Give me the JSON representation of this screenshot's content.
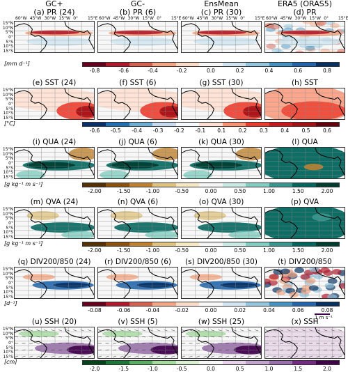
{
  "columns": [
    {
      "line1": "GC+",
      "line2": "(a) PR (24)"
    },
    {
      "line1": "GC-",
      "line2": "(b) PR (6)"
    },
    {
      "line1": "EnsMean",
      "line2": "(c) PR (30)"
    },
    {
      "line1": "ERA5 (ORAS5)",
      "line2": "(d) PR"
    }
  ],
  "x_ticks": [
    "60°W",
    "45°W",
    "30°W",
    "15°W",
    "0°",
    "15°E"
  ],
  "y_ticks": [
    "15°N",
    "10°N",
    "5°N",
    "0°",
    "5°S",
    "10°S",
    "15°S"
  ],
  "rows": [
    {
      "titles": [
        "",
        "",
        "",
        ""
      ],
      "unit": "[mm d⁻¹]",
      "colorbar": [
        "-0.8",
        "-0.6",
        "-0.4",
        "-0.2",
        "0.0",
        "0.2",
        "0.4",
        "0.6",
        "0.8"
      ],
      "palette": "rb"
    },
    {
      "titles": [
        "(e) SST (24)",
        "(f) SST (6)",
        "(g) SST (30)",
        "(h) SST"
      ],
      "unit": "[°C]",
      "colorbar": [
        "-0.6",
        "-0.5",
        "-0.4",
        "-0.3",
        "-0.2",
        "-0.1",
        "0.1",
        "0.2",
        "0.3",
        "0.4",
        "0.5",
        "0.6"
      ],
      "palette": "br"
    },
    {
      "titles": [
        "(i) QUA (24)",
        "(j) QUA (6)",
        "(k) QUA (30)",
        "(l) QUA"
      ],
      "unit": "[g kg⁻¹ m s⁻¹]",
      "colorbar": [
        "-2.00",
        "-1.50",
        "-1.00",
        "-0.50",
        "0.00",
        "0.50",
        "1.00",
        "1.50",
        "2.00"
      ],
      "palette": "bt"
    },
    {
      "titles": [
        "(m) QVA (24)",
        "(n) QVA (6)",
        "(o) QVA (30)",
        "(p) QVA"
      ],
      "unit": "[g kg⁻¹ m s⁻¹]",
      "colorbar": [
        "-2.00",
        "-1.50",
        "-1.00",
        "-0.50",
        "0.00",
        "0.50",
        "1.00",
        "1.50",
        "2.00"
      ],
      "palette": "bt"
    },
    {
      "titles": [
        "(q) DIV200/850 (24)",
        "(r) DIV200/850 (6)",
        "(s) DIV200/850 (30)",
        "(t) DIV200/850"
      ],
      "unit": "[d⁻¹]",
      "colorbar": [
        "-0.08",
        "-0.06",
        "-0.04",
        "-0.02",
        "0.00",
        "0.02",
        "0.04",
        "0.06",
        "0.08"
      ],
      "palette": "rb"
    },
    {
      "titles": [
        "(u) SSH (20)",
        "(v) SSH (5)",
        "(w) SSH (25)",
        "(x) SSH"
      ],
      "unit": "[cm]",
      "colorbar": [
        "-2.0",
        "-1.5",
        "-1.0",
        "-0.5",
        "0.0",
        "0.5",
        "1.0",
        "1.5",
        "2.0"
      ],
      "palette": "gp"
    }
  ],
  "vector_scale_label": "1 m s⁻¹",
  "colors": {
    "red": "#a50f15",
    "blue": "#08306b",
    "teal": "#01665e",
    "brown": "#8c510a",
    "green": "#1b7837",
    "purple": "#40004b",
    "land": "#ffffff"
  }
}
